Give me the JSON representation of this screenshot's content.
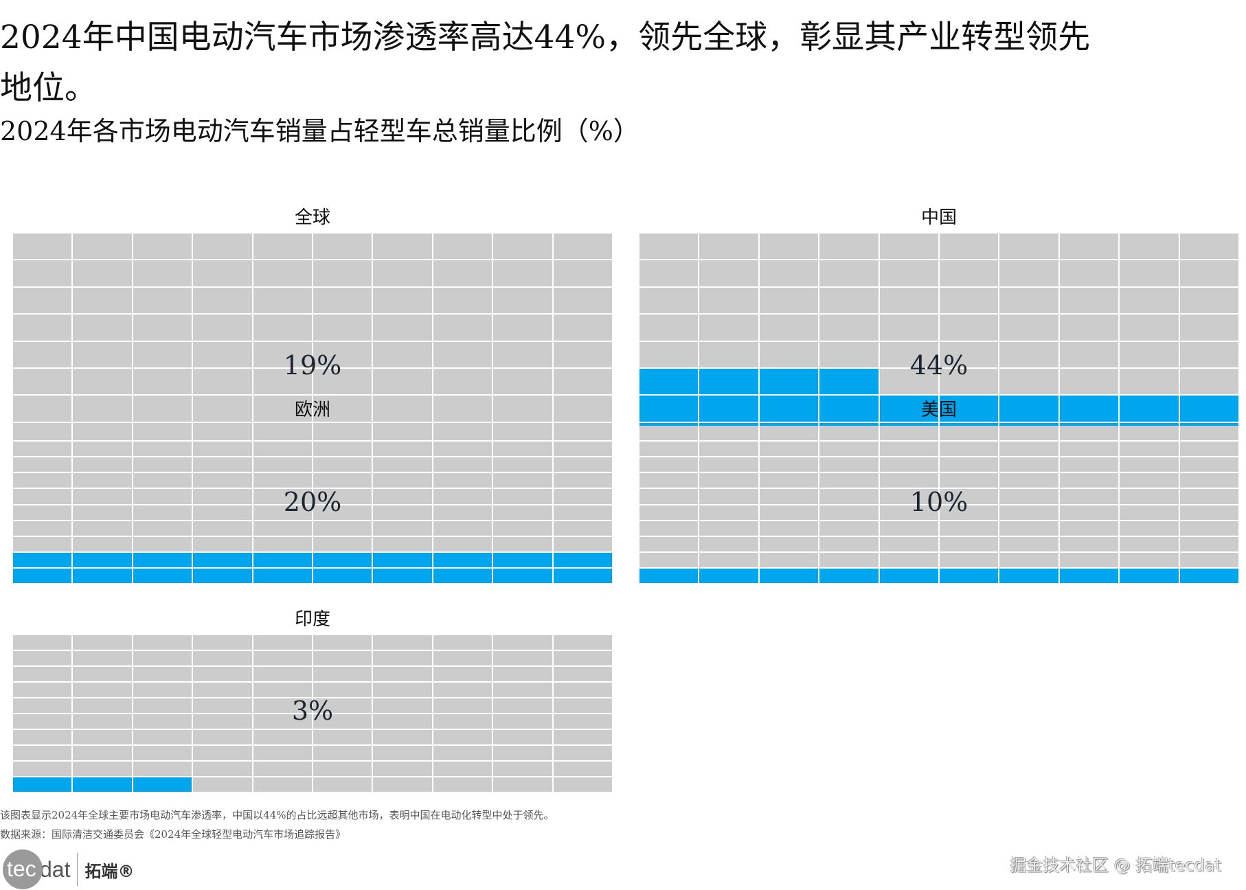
{
  "title": "2024年中国电动汽车市场渗透率高达44%，领先全球，彰显其产业转型领先地位。",
  "chart_data": {
    "type": "waffle",
    "title": "2024年各市场电动汽车销量占轻型车总销量比例（%）",
    "grid": {
      "rows": 10,
      "cols": 10
    },
    "colors": {
      "filled": "#00a6ed",
      "empty": "#cccccc"
    },
    "panels": [
      {
        "name": "全球",
        "value": 19,
        "label": "19%"
      },
      {
        "name": "中国",
        "value": 44,
        "label": "44%"
      },
      {
        "name": "欧洲",
        "value": 20,
        "label": "20%"
      },
      {
        "name": "美国",
        "value": 10,
        "label": "10%"
      },
      {
        "name": "印度",
        "value": 3,
        "label": "3%"
      }
    ]
  },
  "footnote": "该图表显示2024年全球主要市场电动汽车渗透率，中国以44%的占比远超其他市场，表明中国在电动化转型中处于领先。",
  "source": "数据来源：国际清洁交通委员会《2024年全球轻型电动汽车市场追踪报告》",
  "logo": {
    "tec": "tec",
    "dat": "dat",
    "cn": "拓端®"
  },
  "watermark": "掘金技术社区 @ 拓端tecdat"
}
